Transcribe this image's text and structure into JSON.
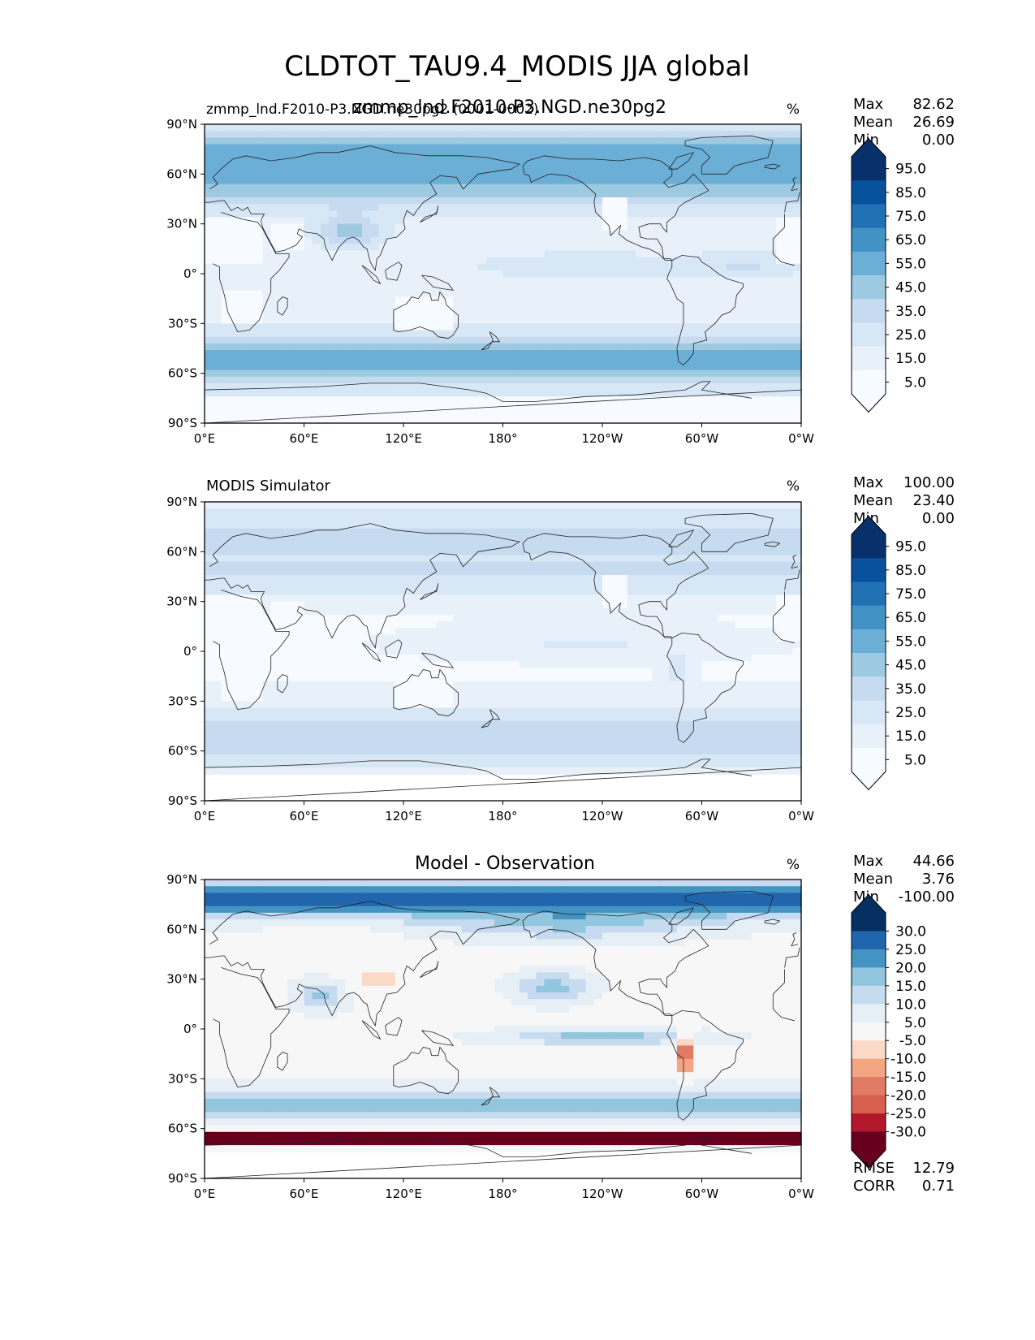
{
  "figure": {
    "title": "CLDTOT_TAU9.4_MODIS JJA global"
  },
  "chart_data": [
    {
      "type": "heatmap",
      "left_title": "zmmp_lnd.F2010-P3.NGD.ne30pg2 (0001-0002)",
      "center_title": "zmmp_lnd.F2010-P3.NGD.ne30pg2",
      "units": "%",
      "stats": {
        "max_label": "Max",
        "max": "82.62",
        "mean_label": "Mean",
        "mean": "26.69",
        "min_label": "Min",
        "min": "0.00"
      },
      "xticks": [
        "0°E",
        "60°E",
        "120°E",
        "180°",
        "120°W",
        "60°W",
        "0°W"
      ],
      "yticks": [
        "90°N",
        "60°N",
        "30°N",
        "0°",
        "30°S",
        "60°S",
        "90°S"
      ],
      "xlim": [
        0,
        360
      ],
      "ylim": [
        -90,
        90
      ],
      "colormap": "Blues",
      "colorbar": {
        "ticks": [
          "95.0",
          "85.0",
          "75.0",
          "65.0",
          "55.0",
          "45.0",
          "35.0",
          "25.0",
          "15.0",
          "5.0"
        ],
        "colors": [
          "#08306b",
          "#08519c",
          "#2171b5",
          "#4292c6",
          "#6baed6",
          "#9ecae1",
          "#c6dbef",
          "#d8e7f5",
          "#e8f1fa",
          "#f7fbff"
        ],
        "extend": "both"
      },
      "field": "model"
    },
    {
      "type": "heatmap",
      "left_title": "MODIS Simulator",
      "center_title": "",
      "units": "%",
      "stats": {
        "max_label": "Max",
        "max": "100.00",
        "mean_label": "Mean",
        "mean": "23.40",
        "min_label": "Min",
        "min": "0.00"
      },
      "xticks": [
        "0°E",
        "60°E",
        "120°E",
        "180°",
        "120°W",
        "60°W",
        "0°W"
      ],
      "yticks": [
        "90°N",
        "60°N",
        "30°N",
        "0°",
        "30°S",
        "60°S",
        "90°S"
      ],
      "xlim": [
        0,
        360
      ],
      "ylim": [
        -90,
        90
      ],
      "colormap": "Blues",
      "colorbar": {
        "ticks": [
          "95.0",
          "85.0",
          "75.0",
          "65.0",
          "55.0",
          "45.0",
          "35.0",
          "25.0",
          "15.0",
          "5.0"
        ],
        "colors": [
          "#08306b",
          "#08519c",
          "#2171b5",
          "#4292c6",
          "#6baed6",
          "#9ecae1",
          "#c6dbef",
          "#d8e7f5",
          "#e8f1fa",
          "#f7fbff"
        ],
        "extend": "both"
      },
      "field": "obs"
    },
    {
      "type": "heatmap",
      "left_title": "",
      "center_title": "Model - Observation",
      "units": "%",
      "stats": {
        "max_label": "Max",
        "max": "44.66",
        "mean_label": "Mean",
        "mean": "3.76",
        "min_label": "Min",
        "min": "-100.00"
      },
      "xticks": [
        "0°E",
        "60°E",
        "120°E",
        "180°",
        "120°W",
        "60°W",
        "0°W"
      ],
      "yticks": [
        "90°N",
        "60°N",
        "30°N",
        "0°",
        "30°S",
        "60°S",
        "90°S"
      ],
      "xlim": [
        0,
        360
      ],
      "ylim": [
        -90,
        90
      ],
      "colormap": "RdBu",
      "colorbar": {
        "ticks": [
          "30.0",
          "25.0",
          "20.0",
          "15.0",
          "10.0",
          "5.0",
          "-5.0",
          "-10.0",
          "-15.0",
          "-20.0",
          "-25.0",
          "-30.0"
        ],
        "colors": [
          "#053061",
          "#2166ac",
          "#4393c3",
          "#92c5de",
          "#c6dbef",
          "#e6eff5",
          "#f7f7f7",
          "#fbd9c7",
          "#f4a582",
          "#e07b65",
          "#d6604d",
          "#b2182b",
          "#67001f"
        ],
        "extend": "both"
      },
      "extra_stats": {
        "rmse_label": "RMSE",
        "rmse": "12.79",
        "corr_label": "CORR",
        "corr": "0.71"
      },
      "field": "diff"
    }
  ]
}
